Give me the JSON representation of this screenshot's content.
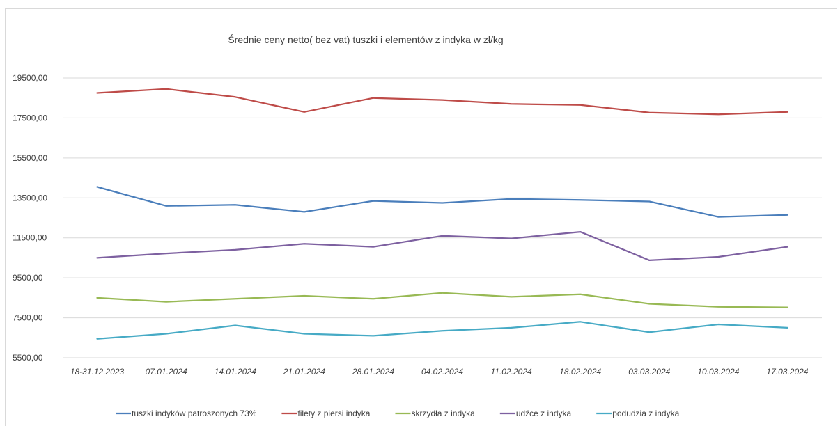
{
  "chart_data": {
    "type": "line",
    "title": "Średnie ceny netto( bez vat) tuszki i elementów z indyka w zł/kg",
    "xlabel": "",
    "ylabel": "",
    "ylim": [
      5500,
      19500
    ],
    "y_ticks": [
      {
        "value": 5500,
        "label": "5500,00"
      },
      {
        "value": 7500,
        "label": "7500,00"
      },
      {
        "value": 9500,
        "label": "9500,00"
      },
      {
        "value": 11500,
        "label": "11500,00"
      },
      {
        "value": 13500,
        "label": "13500,00"
      },
      {
        "value": 15500,
        "label": "15500,00"
      },
      {
        "value": 17500,
        "label": "17500,00"
      },
      {
        "value": 19500,
        "label": "19500,00"
      }
    ],
    "grid": true,
    "legend_position": "bottom",
    "categories": [
      "18-31.12.2023",
      "07.01.2024",
      "14.01.2024",
      "21.01.2024",
      "28.01.2024",
      "04.02.2024",
      "11.02.2024",
      "18.02.2024",
      "03.03.2024",
      "10.03.2024",
      "17.03.2024"
    ],
    "series": [
      {
        "name": "tuszki indyków patroszonych 73%",
        "color": "#4a7ebb",
        "values": [
          14050,
          13100,
          13150,
          12800,
          13350,
          13250,
          13450,
          13400,
          13320,
          12550,
          12650
        ]
      },
      {
        "name": "filety z piersi indyka",
        "color": "#be4b48",
        "values": [
          18750,
          18950,
          18550,
          17800,
          18500,
          18400,
          18200,
          18150,
          17770,
          17680,
          17800
        ]
      },
      {
        "name": "skrzydła z indyka",
        "color": "#98b954",
        "values": [
          8500,
          8300,
          8450,
          8600,
          8450,
          8750,
          8550,
          8680,
          8200,
          8050,
          8020
        ]
      },
      {
        "name": "udźce z indyka",
        "color": "#7d60a0",
        "values": [
          10500,
          10720,
          10900,
          11200,
          11050,
          11600,
          11470,
          11800,
          10380,
          10550,
          11050
        ]
      },
      {
        "name": "podudzia z indyka",
        "color": "#46aac5",
        "values": [
          6450,
          6700,
          7120,
          6700,
          6600,
          6850,
          7000,
          7300,
          6780,
          7170,
          7000
        ]
      }
    ]
  }
}
